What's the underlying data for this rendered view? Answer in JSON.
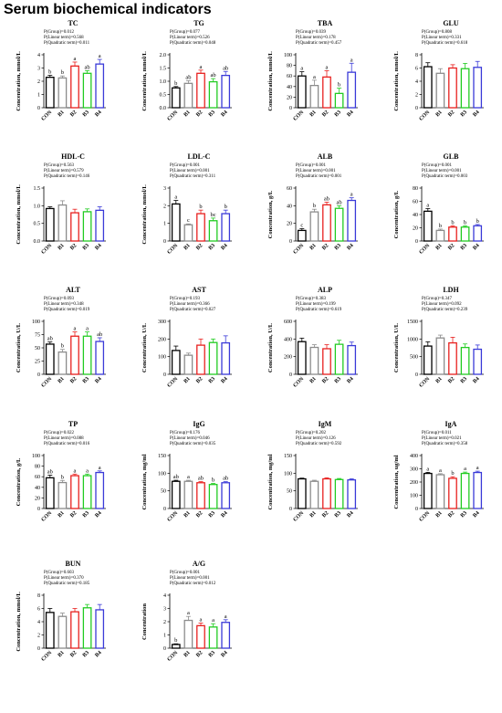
{
  "page": {
    "title": "Serum biochemical indicators"
  },
  "colors": {
    "CON": "#000000",
    "B1": "#8c8c8c",
    "B2": "#e8201e",
    "B3": "#22cc22",
    "B4": "#3a3ad8"
  },
  "chart_data": [
    {
      "type": "bar",
      "title": "TC",
      "ylabel": "Concentration, mmol/L",
      "ylim": [
        0,
        4
      ],
      "yticks": [
        "0",
        "1",
        "2",
        "3",
        "4"
      ],
      "categories": [
        "CON",
        "B1",
        "B2",
        "B3",
        "B4"
      ],
      "values": [
        2.3,
        2.25,
        3.15,
        2.6,
        3.3
      ],
      "errors": [
        0.15,
        0.15,
        0.3,
        0.2,
        0.35
      ],
      "letters": [
        "b",
        "b",
        "a",
        "ab",
        "a"
      ],
      "stats": [
        "P(Group)=0.012",
        "P(Linear term)=0.568",
        "P(Quadratic term)=0.011"
      ]
    },
    {
      "type": "bar",
      "title": "TG",
      "ylabel": "Concentration, mmol/L",
      "ylim": [
        0,
        2.0
      ],
      "yticks": [
        "0.0",
        "0.5",
        "1.0",
        "1.5",
        "2.0"
      ],
      "categories": [
        "CON",
        "B1",
        "B2",
        "B3",
        "B4"
      ],
      "values": [
        0.75,
        0.92,
        1.3,
        0.98,
        1.22
      ],
      "errors": [
        0.05,
        0.1,
        0.12,
        0.12,
        0.15
      ],
      "letters": [
        "b",
        "ab",
        "a",
        "ab",
        "ab"
      ],
      "stats": [
        "P(Group)=0.077",
        "P(Linear term)=0.526",
        "P(Quadratic term)=0.048"
      ]
    },
    {
      "type": "bar",
      "title": "TBA",
      "ylabel": "Concentration, mmol/L",
      "ylim": [
        0,
        100
      ],
      "yticks": [
        "0",
        "20",
        "40",
        "60",
        "80",
        "100"
      ],
      "categories": [
        "CON",
        "B1",
        "B2",
        "B3",
        "B4"
      ],
      "values": [
        60,
        42,
        58,
        27,
        67
      ],
      "errors": [
        8,
        10,
        12,
        10,
        17
      ],
      "letters": [
        "a",
        "a",
        "a",
        "b",
        "a"
      ],
      "stats": [
        "P(Group)=0.039",
        "P(Linear term)=0.178",
        "P(Quadratic term)=0.457"
      ]
    },
    {
      "type": "bar",
      "title": "GLU",
      "ylabel": "Concentration, mmol/L",
      "ylim": [
        0,
        8
      ],
      "yticks": [
        "0",
        "2",
        "4",
        "6",
        "8"
      ],
      "categories": [
        "CON",
        "B1",
        "B2",
        "B3",
        "B4"
      ],
      "values": [
        6.2,
        5.2,
        6.0,
        5.9,
        6.1
      ],
      "errors": [
        0.6,
        0.7,
        0.5,
        0.8,
        0.9
      ],
      "letters": [
        "",
        "",
        "",
        "",
        ""
      ],
      "stats": [
        "P(Group)=0.808",
        "P(Linear term)=0.331",
        "P(Quadratic term)=0.618"
      ]
    },
    {
      "type": "bar",
      "title": "HDL-C",
      "ylabel": "Concentration, mmol/L",
      "ylim": [
        0,
        1.5
      ],
      "yticks": [
        "0.0",
        "0.5",
        "1.0",
        "1.5"
      ],
      "categories": [
        "CON",
        "B1",
        "B2",
        "B3",
        "B4"
      ],
      "values": [
        0.92,
        1.02,
        0.8,
        0.83,
        0.87
      ],
      "errors": [
        0.05,
        0.12,
        0.1,
        0.08,
        0.1
      ],
      "letters": [
        "",
        "",
        "",
        "",
        ""
      ],
      "stats": [
        "P(Group)=0.563",
        "P(Linear term)=0.579",
        "P(Quadratic term)=0.146"
      ]
    },
    {
      "type": "bar",
      "title": "LDL-C",
      "ylabel": "Concentration, mmol/L",
      "ylim": [
        0,
        3
      ],
      "yticks": [
        "0",
        "1",
        "2",
        "3"
      ],
      "categories": [
        "CON",
        "B1",
        "B2",
        "B3",
        "B4"
      ],
      "values": [
        2.1,
        0.92,
        1.55,
        1.15,
        1.55
      ],
      "errors": [
        0.2,
        0.05,
        0.2,
        0.15,
        0.2
      ],
      "letters": [
        "a",
        "c",
        "b",
        "bc",
        "b"
      ],
      "stats": [
        "P(Group)=0.001",
        "P(Linear term)=0.001",
        "P(Quadratic term)=0.311"
      ]
    },
    {
      "type": "bar",
      "title": "ALB",
      "ylabel": "Concentration, g/L",
      "ylim": [
        0,
        60
      ],
      "yticks": [
        "0",
        "20",
        "40",
        "60"
      ],
      "categories": [
        "CON",
        "B1",
        "B2",
        "B3",
        "B4"
      ],
      "values": [
        12,
        33,
        41,
        37,
        46
      ],
      "errors": [
        2,
        3,
        3,
        3,
        3
      ],
      "letters": [
        "c",
        "b",
        "ab",
        "ab",
        "a"
      ],
      "stats": [
        "P(Group)=0.001",
        "P(Linear term)=0.001",
        "P(Quadratic term)=0.001"
      ]
    },
    {
      "type": "bar",
      "title": "GLB",
      "ylabel": "Concentration, g/L",
      "ylim": [
        0,
        80
      ],
      "yticks": [
        "0",
        "20",
        "40",
        "60",
        "80"
      ],
      "categories": [
        "CON",
        "B1",
        "B2",
        "B3",
        "B4"
      ],
      "values": [
        45,
        16,
        21,
        21,
        23
      ],
      "errors": [
        4,
        2,
        2,
        2,
        2
      ],
      "letters": [
        "a",
        "b",
        "b",
        "b",
        "b"
      ],
      "stats": [
        "P(Group)=0.001",
        "P(Linear term)=0.001",
        "P(Quadratic term)=0.003"
      ]
    },
    {
      "type": "bar",
      "title": "ALT",
      "ylabel": "Concentration, U/L",
      "ylim": [
        0,
        100
      ],
      "yticks": [
        "0",
        "25",
        "50",
        "75",
        "100"
      ],
      "categories": [
        "CON",
        "B1",
        "B2",
        "B3",
        "B4"
      ],
      "values": [
        57,
        42,
        72,
        72,
        62
      ],
      "errors": [
        4,
        5,
        8,
        8,
        7
      ],
      "letters": [
        "ab",
        "b",
        "a",
        "a",
        "ab"
      ],
      "stats": [
        "P(Group)=0.093",
        "P(Linear term)=0.348",
        "P(Quadratic term)=0.019"
      ]
    },
    {
      "type": "bar",
      "title": "AST",
      "ylabel": "Concentration, U/L",
      "ylim": [
        0,
        300
      ],
      "yticks": [
        "0",
        "100",
        "200",
        "300"
      ],
      "categories": [
        "CON",
        "B1",
        "B2",
        "B3",
        "B4"
      ],
      "values": [
        135,
        108,
        165,
        180,
        178
      ],
      "errors": [
        25,
        12,
        35,
        20,
        40
      ],
      "letters": [
        "",
        "",
        "",
        "",
        ""
      ],
      "stats": [
        "P(Group)=0.193",
        "P(Linear term)=0.366",
        "P(Quadratic term)=0.027"
      ]
    },
    {
      "type": "bar",
      "title": "ALP",
      "ylabel": "Concentration, U/L",
      "ylim": [
        0,
        600
      ],
      "yticks": [
        "0",
        "200",
        "400",
        "600"
      ],
      "categories": [
        "CON",
        "B1",
        "B2",
        "B3",
        "B4"
      ],
      "values": [
        370,
        305,
        290,
        340,
        325
      ],
      "errors": [
        40,
        30,
        45,
        45,
        40
      ],
      "letters": [
        "",
        "",
        "",
        "",
        ""
      ],
      "stats": [
        "P(Group)=0.383",
        "P(Linear term)=0.199",
        "P(Quadratic term)=0.619"
      ]
    },
    {
      "type": "bar",
      "title": "LDH",
      "ylabel": "Concentration, U/L",
      "ylim": [
        0,
        1500
      ],
      "yticks": [
        "0",
        "500",
        "1000",
        "1500"
      ],
      "categories": [
        "CON",
        "B1",
        "B2",
        "B3",
        "B4"
      ],
      "values": [
        800,
        1030,
        890,
        760,
        710
      ],
      "errors": [
        120,
        80,
        160,
        100,
        120
      ],
      "letters": [
        "",
        "",
        "",
        "",
        ""
      ],
      "stats": [
        "P(Group)=0.347",
        "P(Linear term)=0.092",
        "P(Quadratic term)=0.239"
      ]
    },
    {
      "type": "bar",
      "title": "TP",
      "ylabel": "Concentration, g/L",
      "ylim": [
        0,
        100
      ],
      "yticks": [
        "0",
        "20",
        "40",
        "60",
        "80",
        "100"
      ],
      "categories": [
        "CON",
        "B1",
        "B2",
        "B3",
        "B4"
      ],
      "values": [
        58,
        49,
        62,
        62,
        68
      ],
      "errors": [
        5,
        4,
        3,
        3,
        3
      ],
      "letters": [
        "ab",
        "b",
        "a",
        "a",
        "a"
      ],
      "stats": [
        "P(Group)=0.022",
        "P(Linear term)=0.088",
        "P(Quadratic term)=0.016"
      ]
    },
    {
      "type": "bar",
      "title": "IgG",
      "ylabel": "Concentration, mg/ml",
      "ylim": [
        0,
        150
      ],
      "yticks": [
        "0",
        "50",
        "100",
        "150"
      ],
      "categories": [
        "CON",
        "B1",
        "B2",
        "B3",
        "B4"
      ],
      "values": [
        77,
        77,
        73,
        68,
        73
      ],
      "errors": [
        3,
        3,
        3,
        3,
        3
      ],
      "letters": [
        "ab",
        "a",
        "ab",
        "b",
        "ab"
      ],
      "stats": [
        "P(Group)=0.176",
        "P(Linear term)=0.046",
        "P(Quadratic term)=0.035"
      ]
    },
    {
      "type": "bar",
      "title": "IgM",
      "ylabel": "Concentration, mg/ml",
      "ylim": [
        0,
        150
      ],
      "yticks": [
        "0",
        "50",
        "100",
        "150"
      ],
      "categories": [
        "CON",
        "B1",
        "B2",
        "B3",
        "B4"
      ],
      "values": [
        84,
        77,
        84,
        82,
        81
      ],
      "errors": [
        2,
        3,
        3,
        3,
        3
      ],
      "letters": [
        "",
        "",
        "",
        "",
        ""
      ],
      "stats": [
        "P(Group)=0.202",
        "P(Linear term)=0.126",
        "P(Quadratic term)=0.592"
      ]
    },
    {
      "type": "bar",
      "title": "IgA",
      "ylabel": "Concentration, ug/ml",
      "ylim": [
        0,
        400
      ],
      "yticks": [
        "0",
        "100",
        "200",
        "300",
        "400"
      ],
      "categories": [
        "CON",
        "B1",
        "B2",
        "B3",
        "B4"
      ],
      "values": [
        265,
        255,
        228,
        265,
        272
      ],
      "errors": [
        8,
        8,
        12,
        10,
        10
      ],
      "letters": [
        "a",
        "a",
        "b",
        "a",
        "a"
      ],
      "stats": [
        "P(Group)=0.011",
        "P(Linear term)=0.021",
        "P(Quadratic term)=0.358"
      ]
    },
    {
      "type": "bar",
      "title": "BUN",
      "ylabel": "Concentration, mmol/L",
      "ylim": [
        0,
        8
      ],
      "yticks": [
        "0",
        "2",
        "4",
        "6",
        "8"
      ],
      "categories": [
        "CON",
        "B1",
        "B2",
        "B3",
        "B4"
      ],
      "values": [
        5.4,
        4.8,
        5.5,
        6.1,
        5.8
      ],
      "errors": [
        0.6,
        0.5,
        0.5,
        0.5,
        0.8
      ],
      "letters": [
        "",
        "",
        "",
        "",
        ""
      ],
      "stats": [
        "P(Group)=0.603",
        "P(Linear term)=0.370",
        "P(Quadratic term)=0.185"
      ]
    },
    {
      "type": "bar",
      "title": "A/G",
      "ylabel": "Concentration",
      "ylim": [
        0,
        4
      ],
      "yticks": [
        "0",
        "1",
        "2",
        "3",
        "4"
      ],
      "categories": [
        "CON",
        "B1",
        "B2",
        "B3",
        "B4"
      ],
      "values": [
        0.28,
        2.1,
        1.7,
        1.6,
        1.95
      ],
      "errors": [
        0.05,
        0.3,
        0.2,
        0.25,
        0.2
      ],
      "letters": [
        "b",
        "a",
        "a",
        "a",
        "a"
      ],
      "stats": [
        "P(Group)=0.001",
        "P(Linear term)=0.001",
        "P(Quadratic term)=0.012"
      ]
    }
  ]
}
